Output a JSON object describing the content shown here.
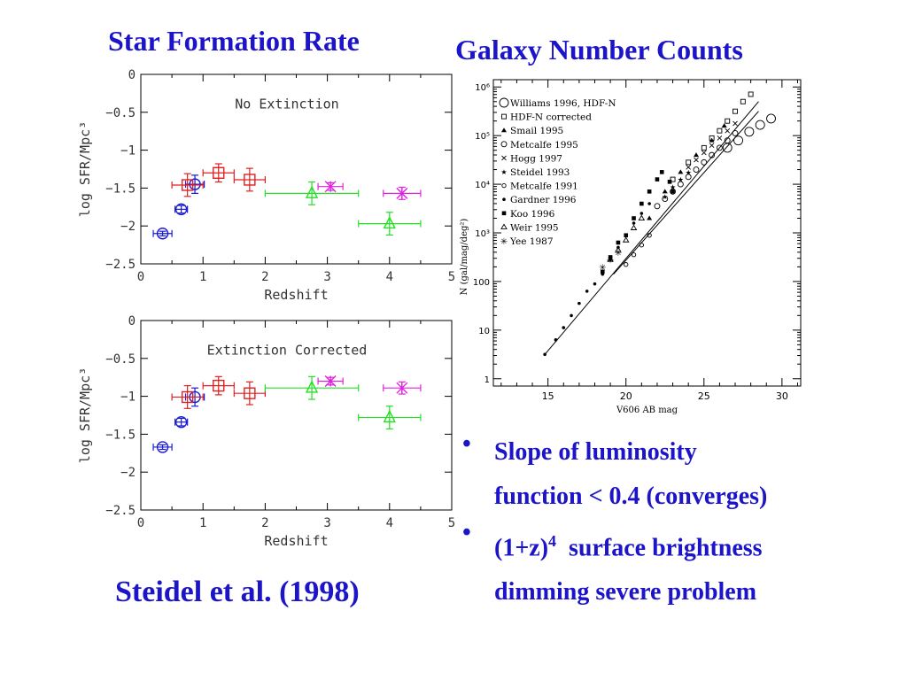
{
  "slide": {
    "title_left": "Star Formation Rate",
    "title_right": "Galaxy Number Counts",
    "citation": "Steidel et al. (1998)",
    "title_color": "#1c14c8"
  },
  "bullets": [
    {
      "line1": "Slope of luminosity",
      "line2": "function < 0.4 (converges)"
    },
    {
      "line1_pre": "(1+z)",
      "line1_sup": "4",
      "line1_post": "  surface brightness",
      "line2": "dimming severe problem"
    }
  ],
  "chart_data": [
    {
      "type": "scatter",
      "annotation": "No Extinction",
      "xlabel": "Redshift",
      "ylabel": "log  SFR/Mpc³",
      "xlim": [
        0,
        5
      ],
      "ylim": [
        -2.5,
        0
      ],
      "x_ticks": [
        "0",
        "1",
        "2",
        "3",
        "4",
        "5"
      ],
      "y_ticks": [
        "0",
        "−0.5",
        "−1",
        "−1.5",
        "−2",
        "−2.5"
      ],
      "series": [
        {
          "marker": "circle",
          "color": "#1a1ad6",
          "points": [
            {
              "x": 0.35,
              "y": -2.1,
              "xerr": 0.15,
              "yerr": 0.03
            },
            {
              "x": 0.65,
              "y": -1.78,
              "xerr": 0.1,
              "yerr": 0.05
            },
            {
              "x": 0.87,
              "y": -1.45,
              "xerr": 0.15,
              "yerr": 0.12
            }
          ]
        },
        {
          "marker": "square",
          "color": "#e02020",
          "points": [
            {
              "x": 0.75,
              "y": -1.46,
              "xerr": 0.25,
              "yerr": 0.15
            },
            {
              "x": 1.25,
              "y": -1.3,
              "xerr": 0.25,
              "yerr": 0.12
            },
            {
              "x": 1.75,
              "y": -1.39,
              "xerr": 0.25,
              "yerr": 0.15
            }
          ]
        },
        {
          "marker": "triangle",
          "color": "#22e022",
          "points": [
            {
              "x": 2.75,
              "y": -1.57,
              "xerr": 0.75,
              "yerr": 0.15
            },
            {
              "x": 4.0,
              "y": -1.97,
              "xerr": 0.5,
              "yerr": 0.15
            }
          ]
        },
        {
          "marker": "star",
          "color": "#e020e0",
          "points": [
            {
              "x": 3.05,
              "y": -1.48,
              "xerr": 0.2,
              "yerr": 0.05
            },
            {
              "x": 4.2,
              "y": -1.57,
              "xerr": 0.3,
              "yerr": 0.08
            }
          ]
        }
      ]
    },
    {
      "type": "scatter",
      "annotation": "Extinction Corrected",
      "xlabel": "Redshift",
      "ylabel": "log  SFR/Mpc³",
      "xlim": [
        0,
        5
      ],
      "ylim": [
        -2.5,
        0
      ],
      "x_ticks": [
        "0",
        "1",
        "2",
        "3",
        "4",
        "5"
      ],
      "y_ticks": [
        "0",
        "−0.5",
        "−1",
        "−1.5",
        "−2",
        "−2.5"
      ],
      "series": [
        {
          "marker": "circle",
          "color": "#1a1ad6",
          "points": [
            {
              "x": 0.35,
              "y": -1.67,
              "xerr": 0.15,
              "yerr": 0.03
            },
            {
              "x": 0.65,
              "y": -1.34,
              "xerr": 0.1,
              "yerr": 0.05
            },
            {
              "x": 0.87,
              "y": -1.01,
              "xerr": 0.15,
              "yerr": 0.12
            }
          ]
        },
        {
          "marker": "square",
          "color": "#e02020",
          "points": [
            {
              "x": 0.75,
              "y": -1.01,
              "xerr": 0.25,
              "yerr": 0.15
            },
            {
              "x": 1.25,
              "y": -0.86,
              "xerr": 0.25,
              "yerr": 0.12
            },
            {
              "x": 1.75,
              "y": -0.96,
              "xerr": 0.25,
              "yerr": 0.15
            }
          ]
        },
        {
          "marker": "triangle",
          "color": "#22e022",
          "points": [
            {
              "x": 2.75,
              "y": -0.89,
              "xerr": 0.75,
              "yerr": 0.15
            },
            {
              "x": 4.0,
              "y": -1.28,
              "xerr": 0.5,
              "yerr": 0.15
            }
          ]
        },
        {
          "marker": "star",
          "color": "#e020e0",
          "points": [
            {
              "x": 3.05,
              "y": -0.8,
              "xerr": 0.2,
              "yerr": 0.05
            },
            {
              "x": 4.2,
              "y": -0.89,
              "xerr": 0.3,
              "yerr": 0.08
            }
          ]
        }
      ]
    },
    {
      "type": "scatter",
      "scale": "log-y",
      "xlabel": "V606 AB mag",
      "ylabel": "N (gal/mag/deg²)",
      "xlim": [
        11.5,
        31.2
      ],
      "ylim_log10": [
        -0.15,
        6.15
      ],
      "x_ticks": [
        "15",
        "20",
        "25",
        "30"
      ],
      "y_ticks": [
        "1",
        "10",
        "100",
        "10³",
        "10⁴",
        "10⁵",
        "10⁶"
      ],
      "legend_position": "top-left",
      "legend": [
        "Williams 1996, HDF-N",
        "HDF-N corrected",
        "Smail 1995",
        "Metcalfe 1995",
        "Hogg 1997",
        "Steidel 1993",
        "Metcalfe 1991",
        "Gardner 1996",
        "Koo 1996",
        "Weir 1995",
        "Yee 1987"
      ],
      "fit_lines": [
        {
          "from": [
            14.8,
            0.5
          ],
          "to": [
            28.5,
            5.7
          ]
        },
        {
          "from": [
            19.2,
            2.15
          ],
          "to": [
            28.5,
            5.5
          ]
        }
      ],
      "series": [
        {
          "name": "Williams 1996, HDF-N",
          "marker": "circle-lg",
          "points": [
            [
              26.5,
              4.75
            ],
            [
              27.2,
              4.9
            ],
            [
              27.9,
              5.08
            ],
            [
              28.6,
              5.22
            ],
            [
              29.3,
              5.35
            ]
          ]
        },
        {
          "name": "HDF-N corrected",
          "marker": "square-open",
          "points": [
            [
              23,
              4.1
            ],
            [
              24,
              4.45
            ],
            [
              25,
              4.75
            ],
            [
              25.5,
              4.95
            ],
            [
              26,
              5.1
            ],
            [
              26.5,
              5.3
            ],
            [
              27,
              5.5
            ],
            [
              27.5,
              5.7
            ],
            [
              28,
              5.85
            ]
          ]
        },
        {
          "name": "Smail 1995",
          "marker": "triangle-filled",
          "points": [
            [
              21.5,
              3.3
            ],
            [
              22.5,
              3.85
            ],
            [
              23.5,
              4.25
            ],
            [
              24.5,
              4.6
            ],
            [
              25.5,
              4.9
            ],
            [
              26.3,
              5.2
            ]
          ]
        },
        {
          "name": "Metcalfe 1995",
          "marker": "circle-open",
          "points": [
            [
              22,
              3.55
            ],
            [
              22.5,
              3.7
            ],
            [
              23,
              3.85
            ],
            [
              23.5,
              4.0
            ],
            [
              24,
              4.15
            ],
            [
              24.5,
              4.3
            ],
            [
              25,
              4.45
            ],
            [
              25.5,
              4.6
            ],
            [
              26,
              4.75
            ],
            [
              26.5,
              4.9
            ],
            [
              27,
              5.05
            ]
          ]
        },
        {
          "name": "Hogg 1997",
          "marker": "cross",
          "points": [
            [
              24,
              4.35
            ],
            [
              24.5,
              4.5
            ],
            [
              25,
              4.65
            ],
            [
              25.5,
              4.8
            ],
            [
              26,
              4.95
            ],
            [
              26.5,
              5.1
            ],
            [
              27,
              5.25
            ]
          ]
        },
        {
          "name": "Steidel 1993",
          "marker": "star",
          "points": [
            [
              22.5,
              3.75
            ],
            [
              23,
              3.95
            ],
            [
              23.5,
              4.1
            ],
            [
              24,
              4.25
            ]
          ]
        },
        {
          "name": "Metcalfe 1991",
          "marker": "circle-open-sm",
          "points": [
            [
              20,
              2.35
            ],
            [
              20.5,
              2.55
            ],
            [
              21,
              2.75
            ],
            [
              21.5,
              2.95
            ]
          ]
        },
        {
          "name": "Gardner 1996",
          "marker": "dot",
          "points": [
            [
              14.8,
              0.5
            ],
            [
              15.5,
              0.8
            ],
            [
              16,
              1.05
            ],
            [
              16.5,
              1.3
            ],
            [
              17,
              1.55
            ],
            [
              17.5,
              1.8
            ],
            [
              18,
              1.95
            ],
            [
              18.5,
              2.15
            ],
            [
              19,
              2.45
            ],
            [
              19.5,
              2.7
            ],
            [
              20,
              2.95
            ],
            [
              20.5,
              3.2
            ],
            [
              21,
              3.4
            ],
            [
              21.5,
              3.6
            ]
          ]
        },
        {
          "name": "Koo 1996",
          "marker": "square-filled",
          "points": [
            [
              18.5,
              2.2
            ],
            [
              19,
              2.5
            ],
            [
              19.5,
              2.8
            ],
            [
              20,
              2.95
            ],
            [
              20.5,
              3.3
            ],
            [
              21,
              3.6
            ],
            [
              21.5,
              3.85
            ],
            [
              22,
              4.1
            ],
            [
              22.3,
              4.25
            ],
            [
              22.8,
              4.05
            ],
            [
              23,
              3.85
            ]
          ]
        },
        {
          "name": "Weir 1995",
          "marker": "triangle-open",
          "points": [
            [
              19,
              2.45
            ],
            [
              19.5,
              2.65
            ],
            [
              20,
              2.85
            ],
            [
              20.5,
              3.1
            ],
            [
              21,
              3.3
            ]
          ]
        },
        {
          "name": "Yee 1987",
          "marker": "asterisk",
          "points": [
            [
              18.5,
              2.3
            ],
            [
              19,
              2.45
            ],
            [
              19.5,
              2.6
            ]
          ]
        }
      ]
    }
  ]
}
